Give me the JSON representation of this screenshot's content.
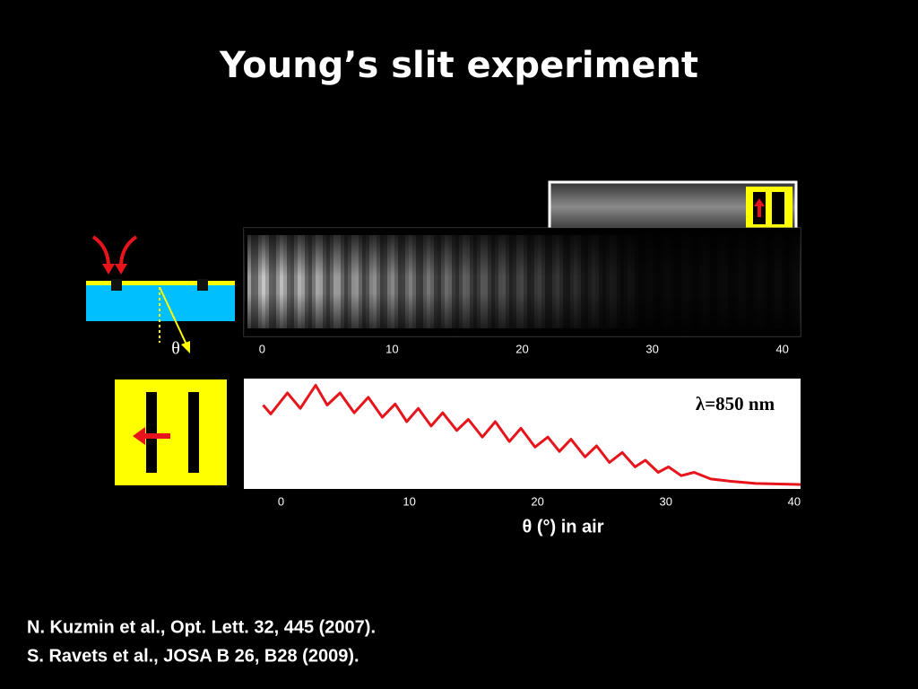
{
  "title": "Young’s slit experiment",
  "diagram": {
    "angle_label": "θ"
  },
  "camera_image": {
    "xlim": [
      -1.4,
      41.4
    ],
    "xticks": [
      0,
      10,
      20,
      30,
      40
    ]
  },
  "chart_data": {
    "type": "line",
    "annotation": "λ=850 nm",
    "xlabel": "θ (°) in air",
    "x": [
      -1.4,
      -0.8,
      0.5,
      1.5,
      2.7,
      3.6,
      4.6,
      5.7,
      6.8,
      7.9,
      8.9,
      9.8,
      10.7,
      11.7,
      12.6,
      13.7,
      14.6,
      15.7,
      16.7,
      17.8,
      18.7,
      19.8,
      20.8,
      21.7,
      22.6,
      23.7,
      24.6,
      25.6,
      26.6,
      27.6,
      28.4,
      29.4,
      30.2,
      31.2,
      32.2,
      33.5,
      35,
      37,
      40.5
    ],
    "series": [
      {
        "color": "#e8141b",
        "values": [
          76,
          68,
          87,
          73,
          94,
          76,
          87,
          69,
          83,
          65,
          77,
          61,
          73,
          57,
          69,
          53,
          63,
          47,
          61,
          43,
          55,
          38,
          47,
          34,
          45,
          29,
          39,
          24,
          33,
          20,
          26,
          15,
          20,
          12,
          15,
          9,
          7,
          5,
          4
        ]
      }
    ],
    "xlim": [
      -2.9,
      40.5
    ],
    "ylim": [
      0,
      100
    ],
    "xticks": [
      0,
      10,
      20,
      30,
      40
    ]
  },
  "references": [
    "N. Kuzmin et al., Opt. Lett. 32, 445 (2007).",
    "S. Ravets et al., JOSA B 26, B28 (2009)."
  ]
}
